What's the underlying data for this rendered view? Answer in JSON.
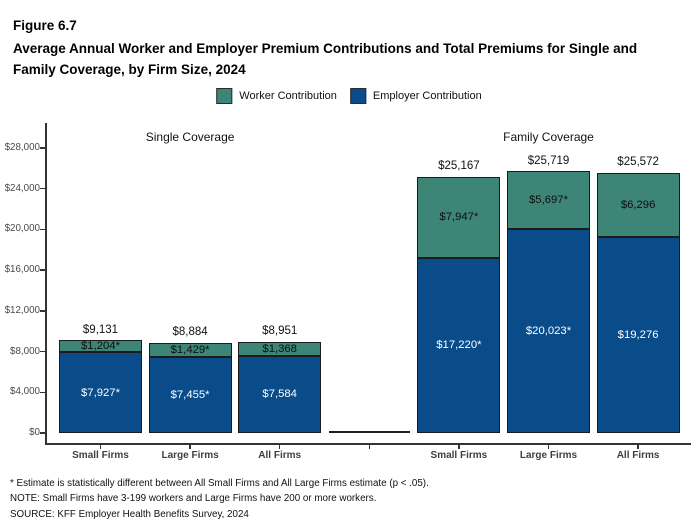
{
  "figure": {
    "number": "Figure 6.7",
    "title": "Average Annual Worker and Employer Premium Contributions and Total Premiums for Single and Family Coverage, by Firm Size, 2024"
  },
  "legend": [
    {
      "label": "Worker Contribution",
      "color": "#3D8677"
    },
    {
      "label": "Employer Contribution",
      "color": "#0A4B8A"
    }
  ],
  "chart_data": {
    "type": "bar",
    "stacked": true,
    "title": "",
    "xlabel": "",
    "ylabel": "",
    "ylim": [
      0,
      28000
    ],
    "grid": false,
    "legend_position": "top-center",
    "series_names": [
      "Worker Contribution",
      "Employer Contribution"
    ],
    "y_ticks": {
      "values": [
        0,
        4000,
        8000,
        12000,
        16000,
        20000,
        24000,
        28000
      ],
      "labels": [
        "$0",
        "$4,000",
        "$8,000",
        "$12,000",
        "$16,000",
        "$20,000",
        "$24,000",
        "$28,000"
      ]
    },
    "groups": [
      {
        "header": "Single Coverage",
        "bars": [
          {
            "category": "Small Firms",
            "worker": 1204,
            "employer": 7927,
            "total": 9131,
            "worker_label": "$1,204*",
            "employer_label": "$7,927*",
            "total_label": "$9,131"
          },
          {
            "category": "Large Firms",
            "worker": 1429,
            "employer": 7455,
            "total": 8884,
            "worker_label": "$1,429*",
            "employer_label": "$7,455*",
            "total_label": "$8,884"
          },
          {
            "category": "All Firms",
            "worker": 1368,
            "employer": 7584,
            "total": 8951,
            "worker_label": "$1,368",
            "employer_label": "$7,584",
            "total_label": "$8,951"
          }
        ]
      },
      {
        "header": "Family Coverage",
        "bars": [
          {
            "category": "Small Firms",
            "worker": 7947,
            "employer": 17220,
            "total": 25167,
            "worker_label": "$7,947*",
            "employer_label": "$17,220*",
            "total_label": "$25,167"
          },
          {
            "category": "Large Firms",
            "worker": 5697,
            "employer": 20023,
            "total": 25719,
            "worker_label": "$5,697*",
            "employer_label": "$20,023*",
            "total_label": "$25,719"
          },
          {
            "category": "All Firms",
            "worker": 6296,
            "employer": 19276,
            "total": 25572,
            "worker_label": "$6,296",
            "employer_label": "$19,276",
            "total_label": "$25,572"
          }
        ]
      }
    ],
    "colors": {
      "worker": "#3D8677",
      "employer": "#0A4B8A",
      "bar_border": "#1B1B1B"
    }
  },
  "footnotes": [
    "* Estimate is statistically different between All Small Firms and All Large Firms estimate (p < .05).",
    "NOTE: Small Firms have 3-199 workers and Large Firms have 200 or more workers.",
    "SOURCE: KFF Employer Health Benefits Survey, 2024"
  ]
}
